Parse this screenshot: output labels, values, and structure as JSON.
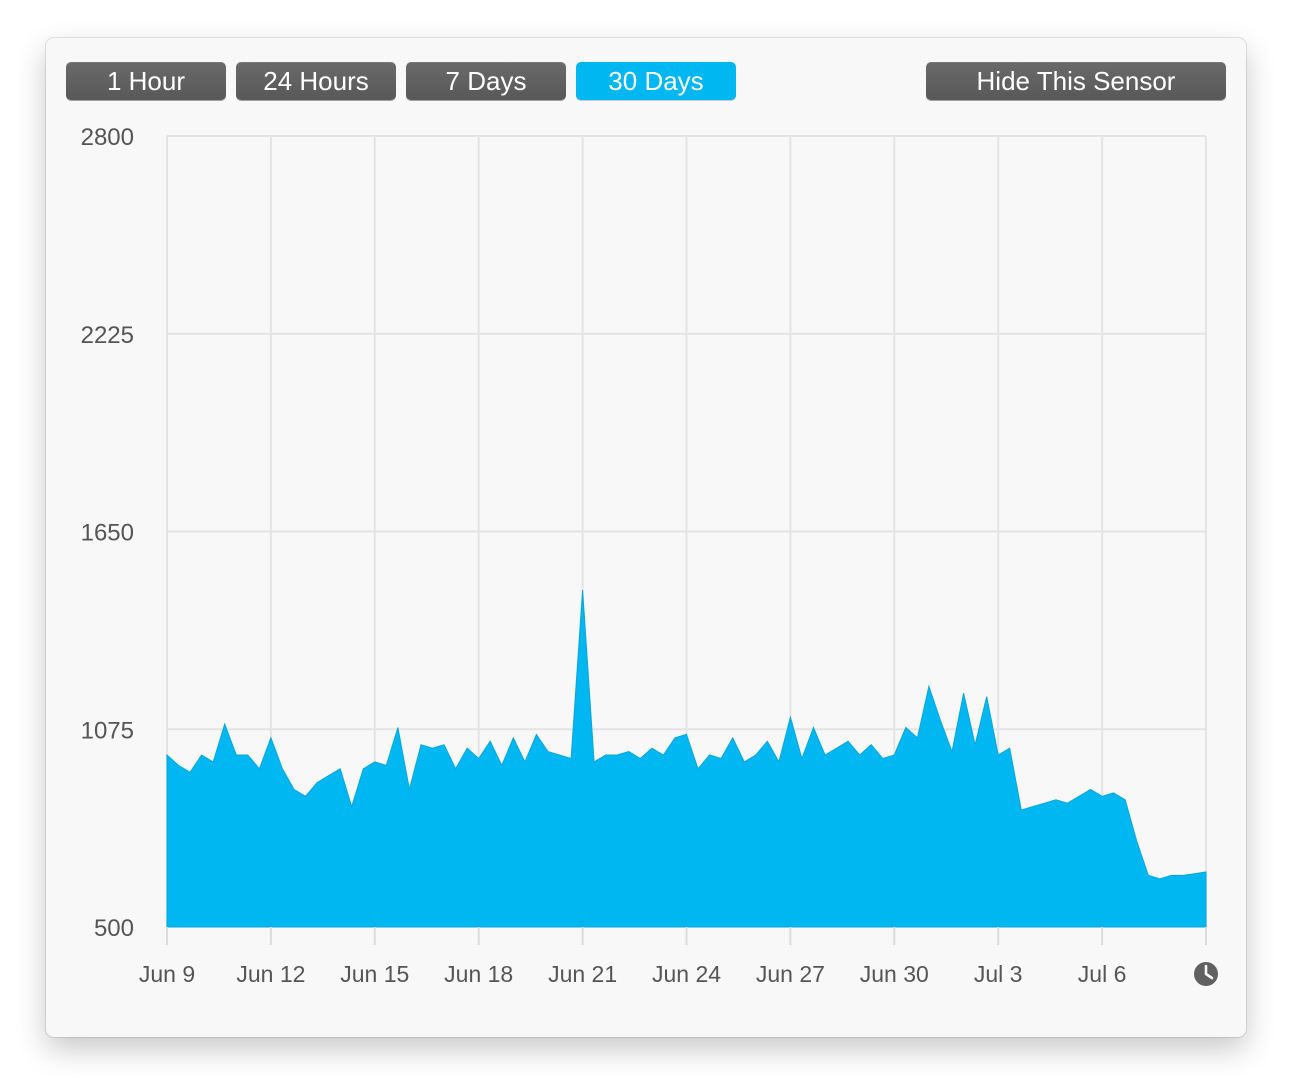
{
  "toolbar": {
    "range_buttons": [
      {
        "label": "1 Hour",
        "active": false
      },
      {
        "label": "24 Hours",
        "active": false
      },
      {
        "label": "7 Days",
        "active": false
      },
      {
        "label": "30 Days",
        "active": true
      }
    ],
    "hide_label": "Hide This Sensor"
  },
  "colors": {
    "accent": "#00b7f2",
    "button": "#5e5e5e",
    "grid": "#e4e4e4",
    "background": "#f8f8f8"
  },
  "chart_data": {
    "type": "area",
    "title": "",
    "xlabel": "",
    "ylabel": "",
    "ylim": [
      500,
      2800
    ],
    "yticks": [
      500,
      1075,
      1650,
      2225,
      2800
    ],
    "ytick_labels": [
      "500",
      "1075",
      "1650",
      "2225",
      "2800"
    ],
    "xlim": [
      "Jun 9",
      "Jul 9"
    ],
    "xtick_labels": [
      "Jun 9",
      "Jun 12",
      "Jun 15",
      "Jun 18",
      "Jun 21",
      "Jun 24",
      "Jun 27",
      "Jun 30",
      "Jul 3",
      "Jul 6"
    ],
    "grid": true,
    "end_icon": "clock-icon",
    "series": [
      {
        "x": [
          "Jun 9",
          "Jun 9 08:00",
          "Jun 9 16:00",
          "Jun 10",
          "Jun 10 08:00",
          "Jun 10 16:00",
          "Jun 11",
          "Jun 11 08:00",
          "Jun 11 16:00",
          "Jun 12",
          "Jun 12 08:00",
          "Jun 12 16:00",
          "Jun 13",
          "Jun 13 08:00",
          "Jun 13 16:00",
          "Jun 14",
          "Jun 14 08:00",
          "Jun 14 16:00",
          "Jun 15",
          "Jun 15 08:00",
          "Jun 15 16:00",
          "Jun 16",
          "Jun 16 08:00",
          "Jun 16 16:00",
          "Jun 17",
          "Jun 17 08:00",
          "Jun 17 16:00",
          "Jun 18",
          "Jun 18 08:00",
          "Jun 18 16:00",
          "Jun 19",
          "Jun 19 08:00",
          "Jun 19 16:00",
          "Jun 20",
          "Jun 20 08:00",
          "Jun 20 16:00",
          "Jun 21",
          "Jun 21 08:00",
          "Jun 21 16:00",
          "Jun 22",
          "Jun 22 08:00",
          "Jun 22 16:00",
          "Jun 23",
          "Jun 23 08:00",
          "Jun 23 16:00",
          "Jun 24",
          "Jun 24 08:00",
          "Jun 24 16:00",
          "Jun 25",
          "Jun 25 08:00",
          "Jun 25 16:00",
          "Jun 26",
          "Jun 26 08:00",
          "Jun 26 16:00",
          "Jun 27",
          "Jun 27 08:00",
          "Jun 27 16:00",
          "Jun 28",
          "Jun 28 08:00",
          "Jun 28 16:00",
          "Jun 29",
          "Jun 29 08:00",
          "Jun 29 16:00",
          "Jun 30",
          "Jun 30 08:00",
          "Jun 30 16:00",
          "Jul 1",
          "Jul 1 08:00",
          "Jul 1 16:00",
          "Jul 2",
          "Jul 2 08:00",
          "Jul 2 16:00",
          "Jul 3",
          "Jul 3 08:00",
          "Jul 3 16:00",
          "Jul 4",
          "Jul 4 08:00",
          "Jul 4 16:00",
          "Jul 5",
          "Jul 5 08:00",
          "Jul 5 16:00",
          "Jul 6",
          "Jul 6 08:00",
          "Jul 6 16:00",
          "Jul 7",
          "Jul 7 08:00",
          "Jul 7 16:00",
          "Jul 8",
          "Jul 8 08:00",
          "Jul 8 16:00",
          "Jul 9"
        ],
        "values": [
          1000,
          970,
          950,
          1000,
          980,
          1090,
          1000,
          1000,
          960,
          1050,
          960,
          900,
          880,
          920,
          940,
          960,
          850,
          960,
          980,
          970,
          1080,
          900,
          1030,
          1020,
          1030,
          960,
          1020,
          990,
          1040,
          970,
          1050,
          980,
          1060,
          1010,
          1000,
          990,
          1480,
          980,
          1000,
          1000,
          1010,
          990,
          1020,
          1000,
          1050,
          1060,
          960,
          1000,
          990,
          1050,
          980,
          1000,
          1040,
          980,
          1110,
          990,
          1080,
          1000,
          1020,
          1040,
          1000,
          1030,
          990,
          1000,
          1080,
          1050,
          1200,
          1100,
          1010,
          1180,
          1030,
          1170,
          1000,
          1020,
          840,
          850,
          860,
          870,
          860,
          880,
          900,
          880,
          890,
          870,
          750,
          650,
          640,
          650,
          650,
          655,
          660
        ]
      }
    ]
  }
}
